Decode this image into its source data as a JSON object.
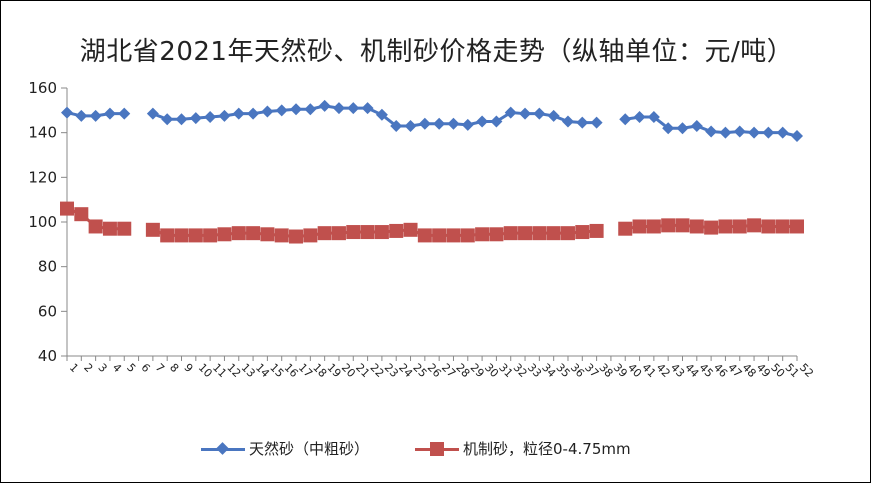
{
  "chart_data": {
    "type": "line",
    "title": "湖北省2021年天然砂、机制砂价格走势（纵轴单位：元/吨）",
    "ylim": [
      40,
      160
    ],
    "yticks": [
      40,
      60,
      80,
      100,
      120,
      140,
      160
    ],
    "grid": false,
    "legend_position": "bottom",
    "categories": [
      "1",
      "2",
      "3",
      "4",
      "5",
      "6",
      "7",
      "8",
      "9",
      "10",
      "11",
      "12",
      "13",
      "14",
      "15",
      "16",
      "17",
      "18",
      "19",
      "20",
      "21",
      "22",
      "23",
      "24",
      "25",
      "26",
      "27",
      "28",
      "29",
      "30",
      "31",
      "32",
      "33",
      "34",
      "35",
      "36",
      "37",
      "38",
      "39",
      "40",
      "41",
      "42",
      "43",
      "44",
      "45",
      "46",
      "47",
      "48",
      "49",
      "50",
      "51",
      "52"
    ],
    "series": [
      {
        "name": "天然砂（中粗砂）",
        "color": "#4a76c0",
        "marker": "diamond",
        "values": [
          149,
          147.5,
          147.5,
          148.5,
          148.5,
          null,
          148.5,
          146,
          146,
          146.5,
          147,
          147.5,
          148.5,
          148.5,
          149.5,
          150,
          150.5,
          150.5,
          152,
          151,
          151,
          151,
          148,
          143,
          143,
          144,
          144,
          144,
          143.5,
          145,
          145,
          149,
          148.5,
          148.5,
          147.5,
          145,
          144.5,
          144.5,
          null,
          146,
          147,
          147,
          142,
          142,
          143,
          140.5,
          140,
          140.5,
          140,
          140,
          140,
          138.5
        ]
      },
      {
        "name": "机制砂，粒径0-4.75mm",
        "color": "#c0504d",
        "marker": "square",
        "values": [
          106,
          103.5,
          98,
          97,
          97,
          null,
          96.5,
          94,
          94,
          94,
          94,
          94.5,
          95,
          95,
          94.5,
          94,
          93.5,
          94,
          95,
          95,
          95.5,
          95.5,
          95.5,
          96,
          96.5,
          94,
          94,
          94,
          94,
          94.5,
          94.5,
          95,
          95,
          95,
          95,
          95,
          95.5,
          96,
          null,
          97,
          98,
          98,
          98.5,
          98.5,
          98,
          97.5,
          98,
          98,
          98.5,
          98,
          98,
          98
        ]
      }
    ]
  }
}
